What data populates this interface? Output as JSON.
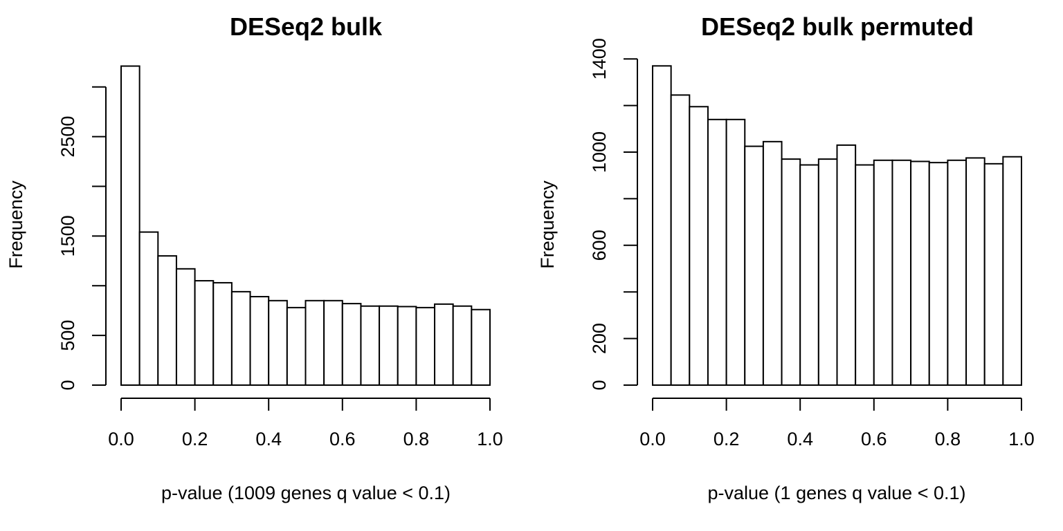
{
  "chart_data": [
    {
      "type": "bar",
      "title": "DESeq2 bulk",
      "xlabel": "p-value (1009 genes q value < 0.1)",
      "ylabel": "Frequency",
      "bin_edges": [
        0.0,
        0.05,
        0.1,
        0.15,
        0.2,
        0.25,
        0.3,
        0.35,
        0.4,
        0.45,
        0.5,
        0.55,
        0.6,
        0.65,
        0.7,
        0.75,
        0.8,
        0.85,
        0.9,
        0.95,
        1.0
      ],
      "values": [
        3210,
        1540,
        1300,
        1170,
        1050,
        1030,
        940,
        890,
        850,
        780,
        850,
        850,
        820,
        795,
        795,
        790,
        780,
        815,
        795,
        760
      ],
      "xlim": [
        0,
        1
      ],
      "ylim": [
        0,
        3300
      ],
      "x_ticks": [
        0.0,
        0.2,
        0.4,
        0.6,
        0.8,
        1.0
      ],
      "x_tick_labels": [
        "0.0",
        "0.2",
        "0.4",
        "0.6",
        "0.8",
        "1.0"
      ],
      "y_ticks": [
        0,
        500,
        1000,
        1500,
        2000,
        2500,
        3000
      ],
      "y_tick_labels": [
        "0",
        "500",
        "",
        "1500",
        "",
        "2500",
        ""
      ],
      "grid": false
    },
    {
      "type": "bar",
      "title": "DESeq2 bulk permuted",
      "xlabel": "p-value (1 genes q value < 0.1)",
      "ylabel": "Frequency",
      "bin_edges": [
        0.0,
        0.05,
        0.1,
        0.15,
        0.2,
        0.25,
        0.3,
        0.35,
        0.4,
        0.45,
        0.5,
        0.55,
        0.6,
        0.65,
        0.7,
        0.75,
        0.8,
        0.85,
        0.9,
        0.95,
        1.0
      ],
      "values": [
        1370,
        1245,
        1195,
        1140,
        1140,
        1025,
        1045,
        970,
        945,
        970,
        1030,
        945,
        965,
        965,
        960,
        955,
        965,
        975,
        950,
        980
      ],
      "xlim": [
        0,
        1
      ],
      "ylim": [
        0,
        1400
      ],
      "x_ticks": [
        0.0,
        0.2,
        0.4,
        0.6,
        0.8,
        1.0
      ],
      "x_tick_labels": [
        "0.0",
        "0.2",
        "0.4",
        "0.6",
        "0.8",
        "1.0"
      ],
      "y_ticks": [
        0,
        200,
        400,
        600,
        800,
        1000,
        1200,
        1400
      ],
      "y_tick_labels": [
        "0",
        "200",
        "",
        "600",
        "",
        "1000",
        "",
        "1400"
      ],
      "grid": false
    }
  ]
}
